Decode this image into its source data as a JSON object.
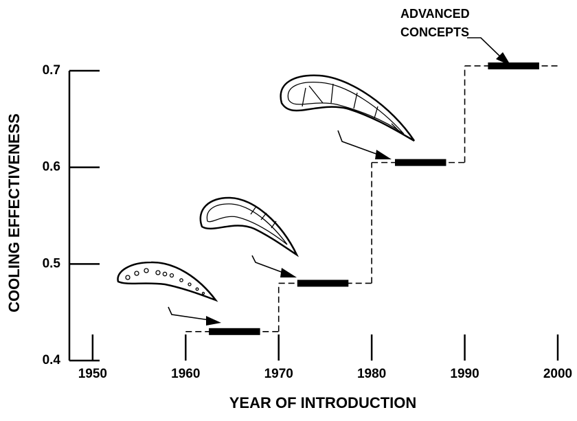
{
  "chart_data": {
    "type": "step",
    "xlabel": "YEAR OF INTRODUCTION",
    "ylabel": "COOLING EFFECTIVENESS",
    "annotation": [
      "ADVANCED",
      "CONCEPTS"
    ],
    "xlim": [
      1947.5,
      2001.7
    ],
    "ylim": [
      0.4,
      0.7
    ],
    "xticks": [
      1950,
      1960,
      1970,
      1980,
      1990,
      2000
    ],
    "yticks": [
      0.4,
      0.5,
      0.6,
      0.7
    ],
    "steps": {
      "start": [
        1960,
        1970,
        1980,
        1990
      ],
      "end": [
        1970,
        1980,
        1990,
        2000
      ],
      "values": [
        0.43,
        0.48,
        0.605,
        0.705
      ]
    },
    "bars": {
      "start": [
        1962.5,
        1972,
        1982.5,
        1992.5
      ],
      "end": [
        1968,
        1977.5,
        1988,
        1998
      ],
      "values": [
        0.43,
        0.48,
        0.605,
        0.705
      ]
    },
    "color": "#000000"
  }
}
